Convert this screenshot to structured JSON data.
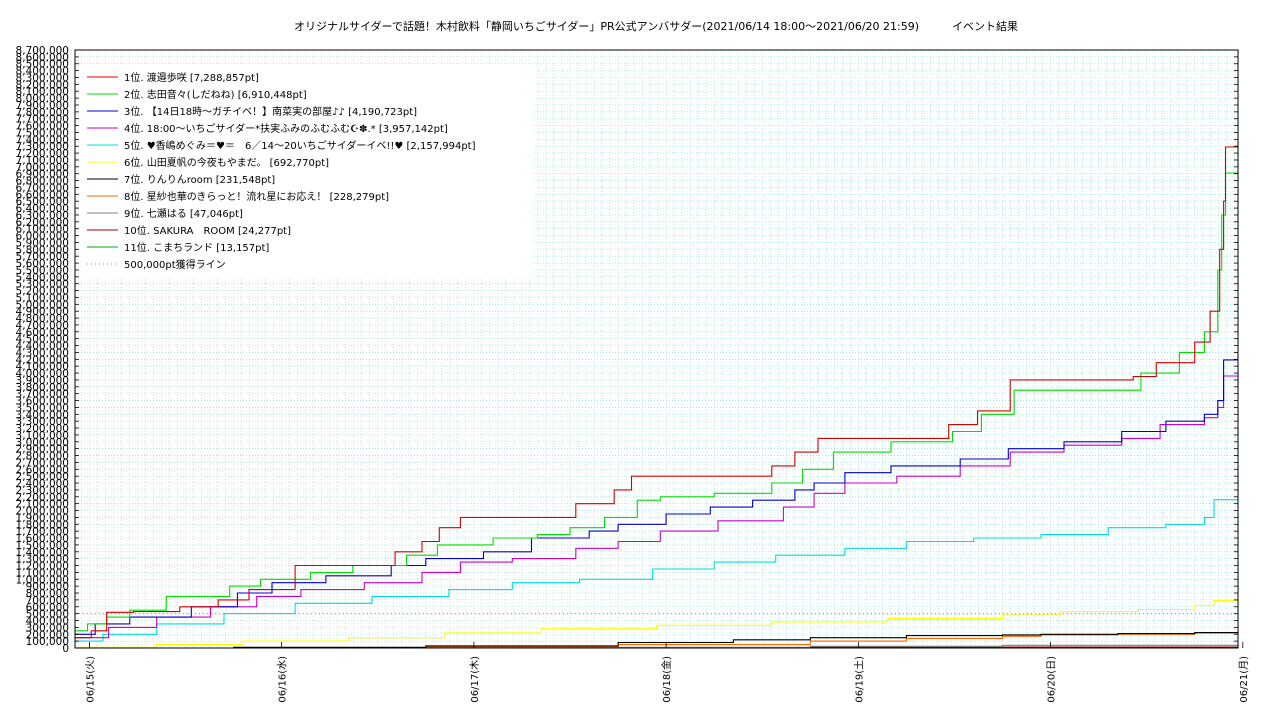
{
  "chart_data": {
    "type": "line",
    "title": "オリジナルサイダーで話題！木村飲料「静岡いちごサイダー」PR公式アンバサダー(2021/06/14 18:00〜2021/06/20 21:59)　　　イベント結果",
    "xlabel": "",
    "ylabel": "",
    "ylim": [
      0,
      8700000
    ],
    "ytick_step": 100000,
    "xlim_days": [
      0.175,
      6.225
    ],
    "x_ticks": [
      {
        "pos": 0.25,
        "label": "06/15(火)"
      },
      {
        "pos": 1.25,
        "label": "06/16(水)"
      },
      {
        "pos": 2.25,
        "label": "06/17(木)"
      },
      {
        "pos": 3.25,
        "label": "06/18(金)"
      },
      {
        "pos": 4.25,
        "label": "06/19(土)"
      },
      {
        "pos": 5.25,
        "label": "06/20(日)"
      },
      {
        "pos": 6.25,
        "label": "06/21(月)"
      }
    ],
    "grid": true,
    "legend_position": "top-left",
    "series": [
      {
        "name": "1位. 渡邉歩咲 [7,288,857pt]",
        "color": "#d40000",
        "x": [
          0.175,
          0.26,
          0.34,
          0.48,
          0.72,
          0.92,
          1.08,
          1.32,
          1.58,
          1.84,
          1.98,
          2.07,
          2.18,
          2.54,
          2.78,
          2.98,
          3.07,
          3.14,
          3.24,
          3.8,
          3.92,
          4.04,
          4.15,
          4.48,
          4.72,
          4.87,
          5.04,
          5.22,
          5.5,
          5.68,
          5.8,
          6.0,
          6.08,
          6.13,
          6.15,
          6.16,
          6.225
        ],
        "y": [
          150000,
          250000,
          520000,
          530000,
          600000,
          700000,
          850000,
          1200000,
          1200000,
          1400000,
          1550000,
          1750000,
          1900000,
          1900000,
          2100000,
          2300000,
          2500000,
          2500000,
          2500000,
          2650000,
          2850000,
          3050000,
          3050000,
          3050000,
          3250000,
          3450000,
          3900000,
          3900000,
          3900000,
          3950000,
          4150000,
          4450000,
          4900000,
          5800000,
          6500000,
          7288857,
          7288857
        ]
      },
      {
        "name": "2位. 志田音々(しだねね) [6,910,448pt]",
        "color": "#00dd00",
        "x": [
          0.175,
          0.24,
          0.34,
          0.46,
          0.65,
          0.98,
          1.14,
          1.4,
          1.62,
          1.9,
          2.06,
          2.35,
          2.58,
          2.75,
          2.93,
          3.1,
          3.22,
          3.5,
          3.8,
          3.96,
          4.12,
          4.42,
          4.74,
          4.89,
          5.06,
          5.22,
          5.5,
          5.72,
          5.92,
          6.05,
          6.12,
          6.14,
          6.16,
          6.225
        ],
        "y": [
          250000,
          350000,
          450000,
          550000,
          750000,
          900000,
          1000000,
          1100000,
          1200000,
          1350000,
          1500000,
          1600000,
          1650000,
          1750000,
          1900000,
          2150000,
          2200000,
          2250000,
          2400000,
          2600000,
          2850000,
          3000000,
          3150000,
          3400000,
          3750000,
          3750000,
          3750000,
          4000000,
          4300000,
          4600000,
          5500000,
          6300000,
          6910448,
          6910448
        ]
      },
      {
        "name": "3位. 【14日18時〜ガチイベ！】南菜実の部屋♪♪ [4,190,723pt]",
        "color": "#0000cc",
        "x": [
          0.175,
          0.28,
          0.46,
          0.78,
          1.02,
          1.2,
          1.48,
          1.82,
          2.0,
          2.3,
          2.55,
          2.85,
          3.0,
          3.25,
          3.48,
          3.7,
          3.92,
          4.02,
          4.18,
          4.42,
          4.78,
          5.03,
          5.32,
          5.62,
          5.85,
          6.05,
          6.12,
          6.15,
          6.225
        ],
        "y": [
          200000,
          350000,
          450000,
          600000,
          800000,
          950000,
          1050000,
          1200000,
          1300000,
          1400000,
          1600000,
          1700000,
          1800000,
          1950000,
          2050000,
          2150000,
          2300000,
          2400000,
          2550000,
          2650000,
          2750000,
          2900000,
          3000000,
          3150000,
          3300000,
          3400000,
          3600000,
          4190723,
          4190723
        ]
      },
      {
        "name": "4位. 18:00〜いちごサイダー*扶実ふみのふむふむ☪✽.* [3,957,142pt]",
        "color": "#cc00cc",
        "x": [
          0.175,
          0.35,
          0.6,
          0.88,
          1.12,
          1.35,
          1.68,
          1.98,
          2.18,
          2.45,
          2.78,
          3.0,
          3.22,
          3.52,
          3.86,
          4.02,
          4.18,
          4.45,
          4.78,
          5.04,
          5.32,
          5.62,
          5.82,
          6.05,
          6.12,
          6.15,
          6.225
        ],
        "y": [
          150000,
          300000,
          450000,
          600000,
          750000,
          850000,
          950000,
          1100000,
          1250000,
          1300000,
          1450000,
          1550000,
          1700000,
          1850000,
          2050000,
          2250000,
          2400000,
          2500000,
          2650000,
          2850000,
          2950000,
          3050000,
          3250000,
          3350000,
          3500000,
          3957142,
          3957142
        ]
      },
      {
        "name": "5位. ♥香嶋めぐみ＝♥＝　6／14〜20いちごサイダーイベ!!♥ [2,157,994pt]",
        "color": "#00dddd",
        "x": [
          0.175,
          0.32,
          0.6,
          0.95,
          1.32,
          1.72,
          2.12,
          2.45,
          2.8,
          3.18,
          3.5,
          3.82,
          4.18,
          4.5,
          4.85,
          5.2,
          5.55,
          5.85,
          6.05,
          6.1,
          6.225
        ],
        "y": [
          100000,
          200000,
          350000,
          500000,
          650000,
          750000,
          850000,
          950000,
          1000000,
          1150000,
          1250000,
          1350000,
          1450000,
          1550000,
          1600000,
          1650000,
          1750000,
          1800000,
          1900000,
          2157994,
          2157994
        ]
      },
      {
        "name": "6位. 山田夏帆の今夜もやまだ。 [692,770pt]",
        "color": "#ffff00",
        "x": [
          0.175,
          0.6,
          1.05,
          1.6,
          2.1,
          2.6,
          3.2,
          3.8,
          4.4,
          5.0,
          5.3,
          5.7,
          6.0,
          6.1,
          6.225
        ],
        "y": [
          10000,
          50000,
          100000,
          150000,
          220000,
          280000,
          330000,
          380000,
          430000,
          480000,
          530000,
          560000,
          620000,
          692770,
          692770
        ]
      },
      {
        "name": "7位. りんりんroom [231,548pt]",
        "color": "#000000",
        "x": [
          0.175,
          1.0,
          2.0,
          3.0,
          3.6,
          4.0,
          4.5,
          5.0,
          5.2,
          5.6,
          6.0,
          6.225
        ],
        "y": [
          0,
          10000,
          30000,
          80000,
          120000,
          150000,
          180000,
          190000,
          200000,
          210000,
          225000,
          231548
        ]
      },
      {
        "name": "8位. 星紗也華のきらっと！流れ星にお応え！ [228,279pt]",
        "color": "#ff6600",
        "x": [
          0.175,
          1.0,
          2.0,
          3.0,
          4.0,
          4.5,
          5.0,
          5.2,
          5.6,
          6.0,
          6.225
        ],
        "y": [
          0,
          5000,
          20000,
          50000,
          100000,
          140000,
          170000,
          190000,
          200000,
          215000,
          228279
        ]
      },
      {
        "name": "9位. 七瀬はる [47,046pt]",
        "color": "#808080",
        "x": [
          0.175,
          2.0,
          4.0,
          5.0,
          6.225
        ],
        "y": [
          0,
          10000,
          25000,
          40000,
          47046
        ]
      },
      {
        "name": "10位. SAKURA　ROOM [24,277pt]",
        "color": "#aa0000",
        "x": [
          0.175,
          2.0,
          4.0,
          6.225
        ],
        "y": [
          0,
          5000,
          15000,
          24277
        ]
      },
      {
        "name": "11位. こまちランド [13,157pt]",
        "color": "#00aa00",
        "x": [
          0.175,
          2.0,
          4.0,
          6.225
        ],
        "y": [
          0,
          3000,
          8000,
          13157
        ]
      }
    ],
    "reference_line": {
      "name": "500,000pt獲得ライン",
      "color": "#ff6666",
      "value": 500000
    }
  }
}
